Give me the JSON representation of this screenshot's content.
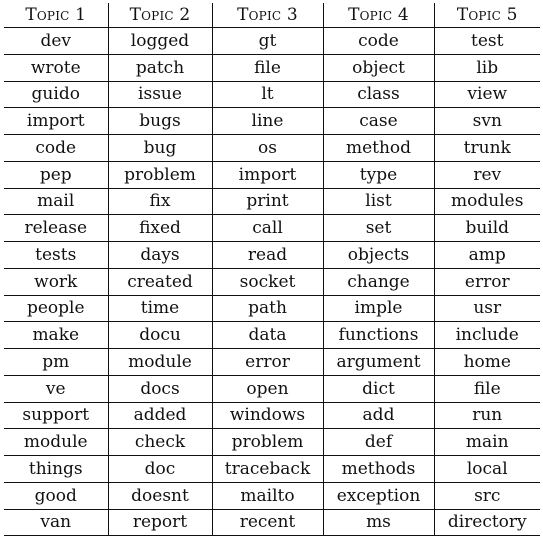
{
  "table": {
    "headers": [
      "Topic 1",
      "Topic 2",
      "Topic 3",
      "Topic 4",
      "Topic 5"
    ],
    "rows": [
      [
        "dev",
        "logged",
        "gt",
        "code",
        "test"
      ],
      [
        "wrote",
        "patch",
        "file",
        "object",
        "lib"
      ],
      [
        "guido",
        "issue",
        "lt",
        "class",
        "view"
      ],
      [
        "import",
        "bugs",
        "line",
        "case",
        "svn"
      ],
      [
        "code",
        "bug",
        "os",
        "method",
        "trunk"
      ],
      [
        "pep",
        "problem",
        "import",
        "type",
        "rev"
      ],
      [
        "mail",
        "fix",
        "print",
        "list",
        "modules"
      ],
      [
        "release",
        "fixed",
        "call",
        "set",
        "build"
      ],
      [
        "tests",
        "days",
        "read",
        "objects",
        "amp"
      ],
      [
        "work",
        "created",
        "socket",
        "change",
        "error"
      ],
      [
        "people",
        "time",
        "path",
        "imple",
        "usr"
      ],
      [
        "make",
        "docu",
        "data",
        "functions",
        "include"
      ],
      [
        "pm",
        "module",
        "error",
        "argument",
        "home"
      ],
      [
        "ve",
        "docs",
        "open",
        "dict",
        "file"
      ],
      [
        "support",
        "added",
        "windows",
        "add",
        "run"
      ],
      [
        "module",
        "check",
        "problem",
        "def",
        "main"
      ],
      [
        "things",
        "doc",
        "traceback",
        "methods",
        "local"
      ],
      [
        "good",
        "doesnt",
        "mailto",
        "exception",
        "src"
      ],
      [
        "van",
        "report",
        "recent",
        "ms",
        "directory"
      ]
    ]
  }
}
